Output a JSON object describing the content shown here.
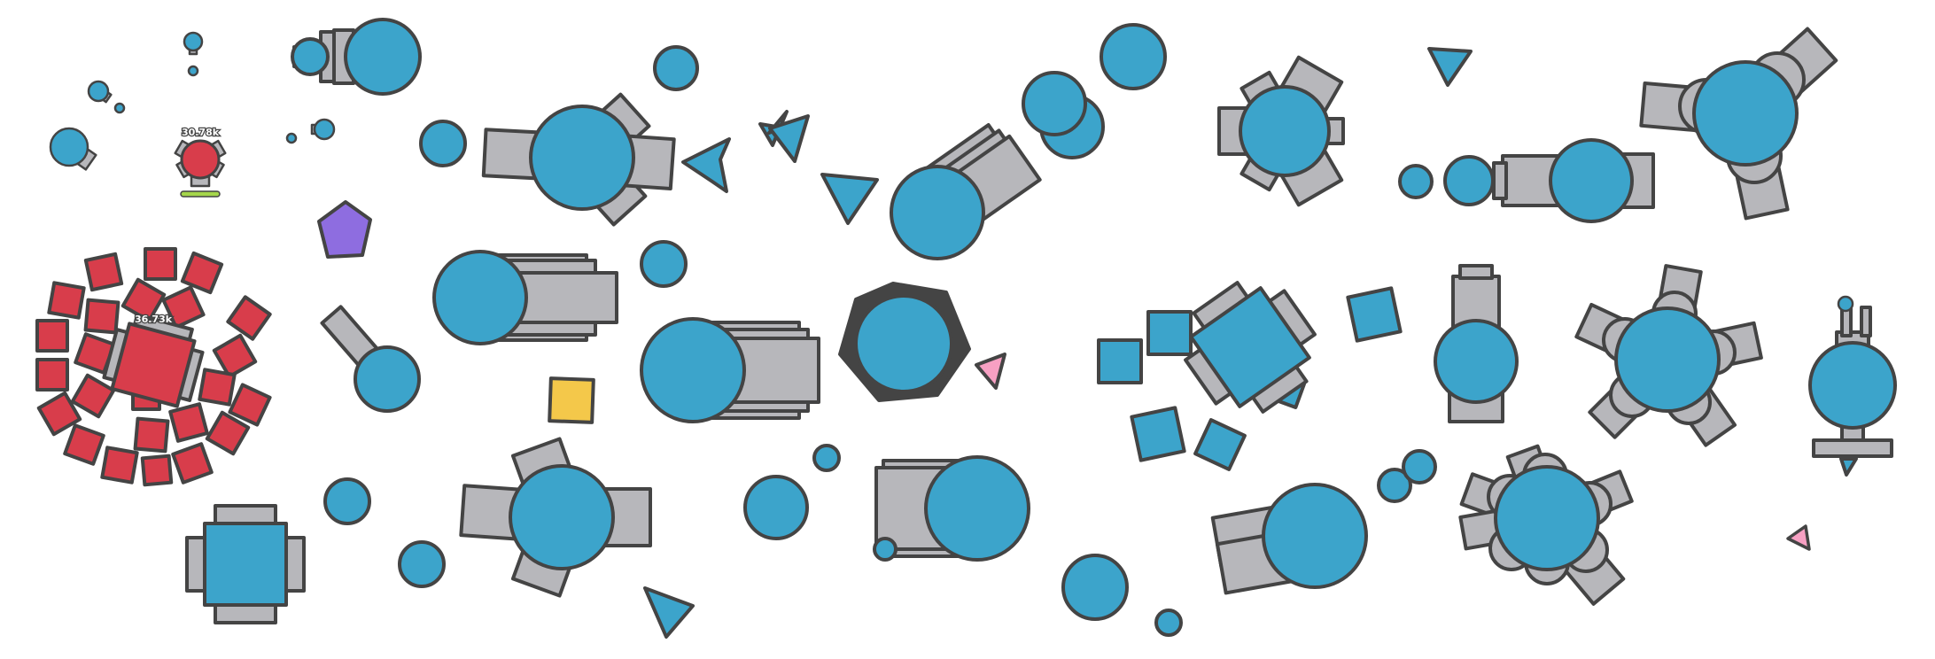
{
  "colors": {
    "body": "#3ca4cb",
    "barrel": "#b7b7bb",
    "outline": "#444444",
    "enemy": "#d83d4b",
    "pentagon": "#8e6de0",
    "square": "#f4c84a",
    "triangle": "#f7a0c3",
    "health": "#a5d64b",
    "decagon": "#444444"
  },
  "score_labels": {
    "small_tank": "30.78k",
    "swarm_tank": "36.73k"
  }
}
